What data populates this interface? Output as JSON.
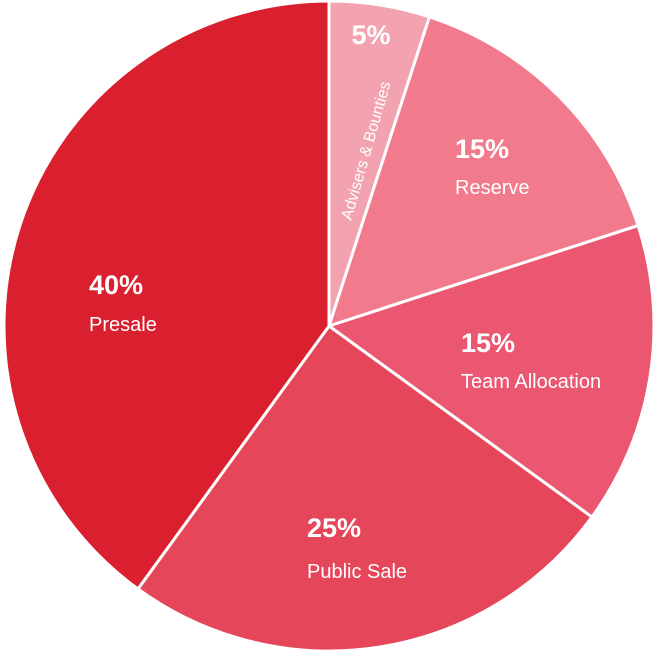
{
  "chart_data": {
    "type": "pie",
    "start_angle_deg": 0,
    "direction": "clockwise",
    "slices": [
      {
        "label": "Advisers & Bounties",
        "percent_text": "5%",
        "value": 5,
        "color": "#f3a2b0"
      },
      {
        "label": "Reserve",
        "percent_text": "15%",
        "value": 15,
        "color": "#f17b8d"
      },
      {
        "label": "Team Allocation",
        "percent_text": "15%",
        "value": 15,
        "color": "#eb5671"
      },
      {
        "label": "Public Sale",
        "percent_text": "25%",
        "value": 25,
        "color": "#e5465a"
      },
      {
        "label": "Presale",
        "percent_text": "40%",
        "value": 40,
        "color": "#da1f2f"
      }
    ]
  }
}
